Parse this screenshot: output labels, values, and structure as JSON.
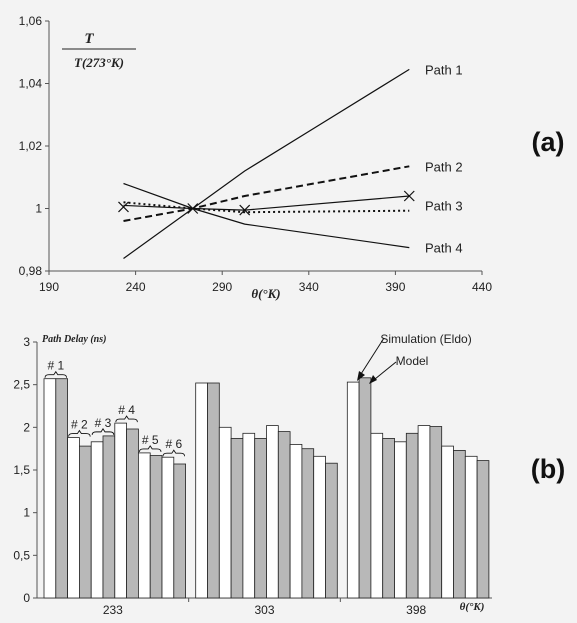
{
  "chart_data": [
    {
      "type": "line",
      "panel_label": "(a)",
      "ylabel_top": "T",
      "ylabel_bottom": "T(273°K)",
      "xlabel": "θ(°K)",
      "xlim": [
        190,
        440
      ],
      "ylim": [
        0.98,
        1.06
      ],
      "x_ticks": [
        "190",
        "240",
        "290",
        "340",
        "390",
        "440"
      ],
      "x_tick_values": [
        190,
        240,
        290,
        340,
        390,
        440
      ],
      "y_ticks": [
        "0,98",
        "1",
        "1,02",
        "1,04",
        "1,06"
      ],
      "y_tick_values": [
        0.98,
        1.0,
        1.02,
        1.04,
        1.06
      ],
      "grid": false,
      "series": [
        {
          "name": "Path 1",
          "style": "solid",
          "x": [
            233,
            273,
            303,
            398
          ],
          "y": [
            0.984,
            1.0,
            1.012,
            1.0445
          ]
        },
        {
          "name": "Path 2",
          "style": "dashed",
          "x": [
            233,
            273,
            303,
            398
          ],
          "y": [
            0.996,
            1.0,
            1.004,
            1.0135
          ]
        },
        {
          "name": "Path 3",
          "style": "solid",
          "x": [
            233,
            273,
            303,
            398
          ],
          "y": [
            1.001,
            1.0,
            0.9995,
            1.004
          ]
        },
        {
          "name": "Path 4",
          "style": "solid",
          "x": [
            233,
            273,
            303,
            398
          ],
          "y": [
            1.008,
            1.0,
            0.995,
            0.9875
          ]
        },
        {
          "name": "",
          "style": "dotted",
          "x": [
            233,
            273,
            303,
            398
          ],
          "y": [
            1.002,
            1.0,
            0.9988,
            0.9993
          ]
        }
      ],
      "markers": [
        {
          "x": 233,
          "y": 1.0005
        },
        {
          "x": 273,
          "y": 1.0
        },
        {
          "x": 303,
          "y": 0.9995
        },
        {
          "x": 398,
          "y": 1.004
        }
      ]
    },
    {
      "type": "bar",
      "panel_label": "(b)",
      "ylabel": "Path Delay (ns)",
      "xlabel": "θ(°K)",
      "ylim": [
        0,
        3
      ],
      "y_ticks": [
        "0",
        "0,5",
        "1",
        "1,5",
        "2",
        "2,5",
        "3"
      ],
      "y_tick_values": [
        0,
        0.5,
        1,
        1.5,
        2,
        2.5,
        3
      ],
      "categories": [
        "233",
        "303",
        "398"
      ],
      "series": [
        {
          "name": "Simulation (Eldo)",
          "color": "#ffffff",
          "values": [
            [
              2.57,
              1.88,
              1.83,
              2.05,
              1.7,
              1.65
            ],
            [
              2.52,
              2.0,
              1.93,
              2.02,
              1.8,
              1.66
            ],
            [
              2.53,
              1.93,
              1.83,
              2.02,
              1.78,
              1.66
            ]
          ]
        },
        {
          "name": "Model",
          "color": "#b8b8b8",
          "values": [
            [
              2.57,
              1.78,
              1.9,
              1.98,
              1.67,
              1.57
            ],
            [
              2.52,
              1.87,
              1.87,
              1.95,
              1.75,
              1.58
            ],
            [
              2.58,
              1.87,
              1.93,
              2.01,
              1.73,
              1.61
            ]
          ]
        }
      ],
      "path_labels": [
        "# 1",
        "# 2",
        "# 3",
        "# 4",
        "# 5",
        "# 6"
      ]
    }
  ]
}
